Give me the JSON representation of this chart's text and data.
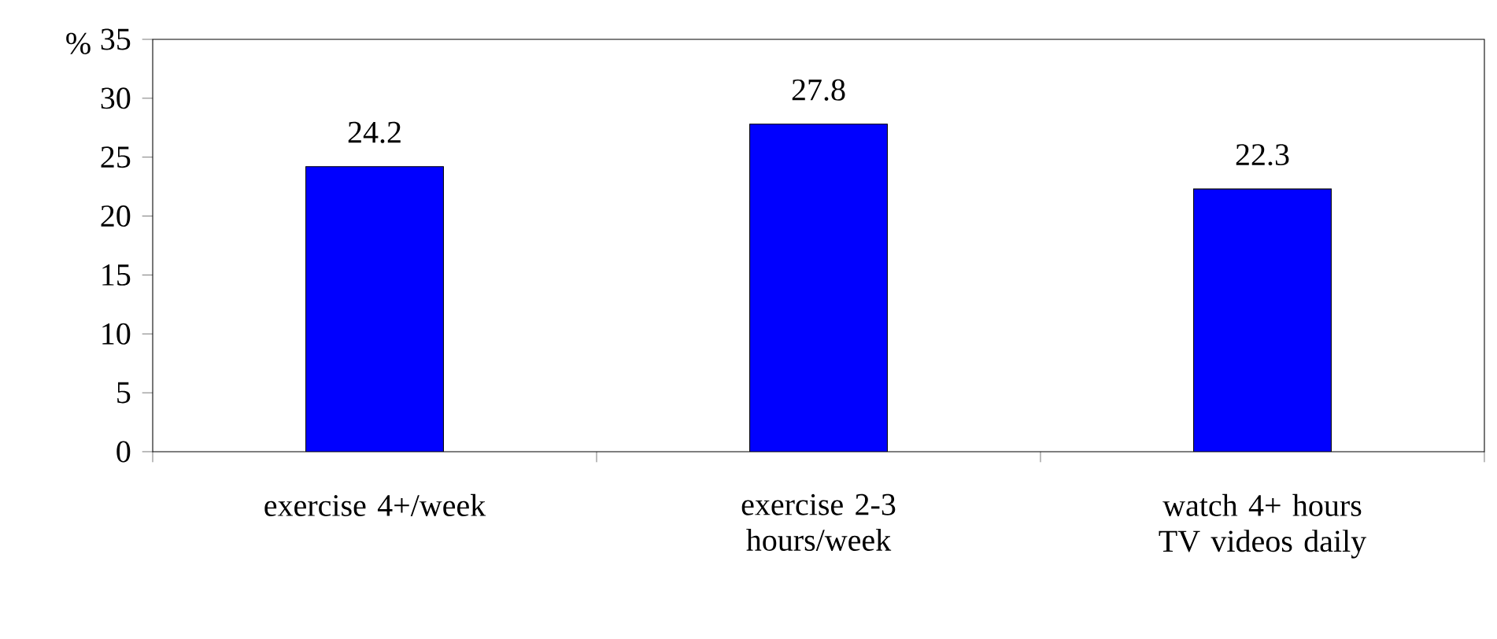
{
  "chart_data": {
    "type": "bar",
    "ylabel": "%",
    "categories": [
      "exercise 4+/week",
      "exercise 2-3 hours/week",
      "watch 4+ hours TV videos daily"
    ],
    "values": [
      24.2,
      27.8,
      22.3
    ],
    "color": "#0000ff",
    "ylim": [
      0,
      35
    ],
    "yticks": [
      0,
      5,
      10,
      15,
      20,
      25,
      30,
      35
    ],
    "grid": false,
    "data_labels": true
  }
}
